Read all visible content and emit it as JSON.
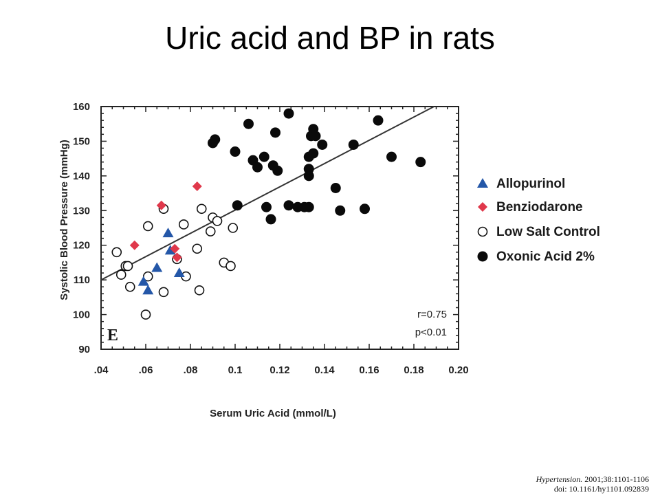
{
  "slide": {
    "title": "Uric acid and BP in rats",
    "citation_journal": "Hypertension.",
    "citation_ref": " 2001;38:1101-1106",
    "citation_doi": "doi: 10.1161/hy1101.092839"
  },
  "chart_data": {
    "type": "scatter",
    "title": "",
    "panel_label": "E",
    "xlabel": "Serum Uric Acid (mmol/L)",
    "ylabel": "Systolic Blood Pressure (mmHg)",
    "xlim": [
      0.04,
      0.2
    ],
    "ylim": [
      90,
      160
    ],
    "x_ticks": [
      {
        "value": 0.04,
        "label": ".04"
      },
      {
        "value": 0.06,
        "label": ".06"
      },
      {
        "value": 0.08,
        "label": ".08"
      },
      {
        "value": 0.1,
        "label": "0.1"
      },
      {
        "value": 0.12,
        "label": "0.12"
      },
      {
        "value": 0.14,
        "label": "0.14"
      },
      {
        "value": 0.16,
        "label": "0.16"
      },
      {
        "value": 0.18,
        "label": "0.18"
      },
      {
        "value": 0.2,
        "label": "0.20"
      }
    ],
    "y_ticks": [
      90,
      100,
      110,
      120,
      130,
      140,
      150,
      160
    ],
    "grid": false,
    "legend_position": "right",
    "annotations": [
      "r=0.75",
      "p<0.01"
    ],
    "regression_line": {
      "x": [
        0.04,
        0.189
      ],
      "y": [
        110.0,
        160.0
      ]
    },
    "series": [
      {
        "name": "Allopurinol",
        "marker": "triangle",
        "color": "#2457a8",
        "points": [
          [
            0.059,
            109.5
          ],
          [
            0.061,
            107.0
          ],
          [
            0.065,
            113.5
          ],
          [
            0.07,
            123.5
          ],
          [
            0.071,
            118.5
          ],
          [
            0.075,
            112.0
          ]
        ]
      },
      {
        "name": "Benziodarone",
        "marker": "diamond",
        "color": "#e0384b",
        "points": [
          [
            0.055,
            120.0
          ],
          [
            0.067,
            131.5
          ],
          [
            0.073,
            119.0
          ],
          [
            0.074,
            116.5
          ],
          [
            0.083,
            137.0
          ]
        ]
      },
      {
        "name": "Low Salt Control",
        "marker": "open-circle",
        "color": "#111111",
        "points": [
          [
            0.047,
            118.0
          ],
          [
            0.049,
            111.5
          ],
          [
            0.051,
            114.0
          ],
          [
            0.052,
            114.0
          ],
          [
            0.053,
            108.0
          ],
          [
            0.06,
            100.0
          ],
          [
            0.061,
            111.0
          ],
          [
            0.061,
            125.5
          ],
          [
            0.068,
            106.5
          ],
          [
            0.068,
            130.5
          ],
          [
            0.074,
            116.0
          ],
          [
            0.077,
            126.0
          ],
          [
            0.078,
            111.0
          ],
          [
            0.083,
            119.0
          ],
          [
            0.084,
            107.0
          ],
          [
            0.085,
            130.5
          ],
          [
            0.089,
            124.0
          ],
          [
            0.09,
            128.0
          ],
          [
            0.092,
            127.0
          ],
          [
            0.095,
            115.0
          ],
          [
            0.098,
            114.0
          ],
          [
            0.099,
            125.0
          ]
        ]
      },
      {
        "name": "Oxonic Acid 2%",
        "marker": "filled-circle",
        "color": "#0a0a0a",
        "points": [
          [
            0.09,
            149.5
          ],
          [
            0.091,
            150.5
          ],
          [
            0.1,
            147.0
          ],
          [
            0.101,
            131.5
          ],
          [
            0.106,
            155.0
          ],
          [
            0.108,
            144.5
          ],
          [
            0.11,
            142.5
          ],
          [
            0.113,
            145.5
          ],
          [
            0.114,
            131.0
          ],
          [
            0.116,
            127.5
          ],
          [
            0.117,
            143.0
          ],
          [
            0.118,
            152.5
          ],
          [
            0.119,
            141.5
          ],
          [
            0.124,
            131.5
          ],
          [
            0.124,
            158.0
          ],
          [
            0.128,
            131.0
          ],
          [
            0.131,
            131.0
          ],
          [
            0.133,
            131.0
          ],
          [
            0.133,
            142.0
          ],
          [
            0.133,
            140.0
          ],
          [
            0.133,
            145.5
          ],
          [
            0.134,
            151.5
          ],
          [
            0.135,
            146.5
          ],
          [
            0.135,
            153.5
          ],
          [
            0.136,
            151.5
          ],
          [
            0.139,
            149.0
          ],
          [
            0.145,
            136.5
          ],
          [
            0.147,
            130.0
          ],
          [
            0.153,
            149.0
          ],
          [
            0.158,
            130.5
          ],
          [
            0.164,
            156.0
          ],
          [
            0.17,
            145.5
          ],
          [
            0.183,
            144.0
          ]
        ]
      }
    ]
  }
}
